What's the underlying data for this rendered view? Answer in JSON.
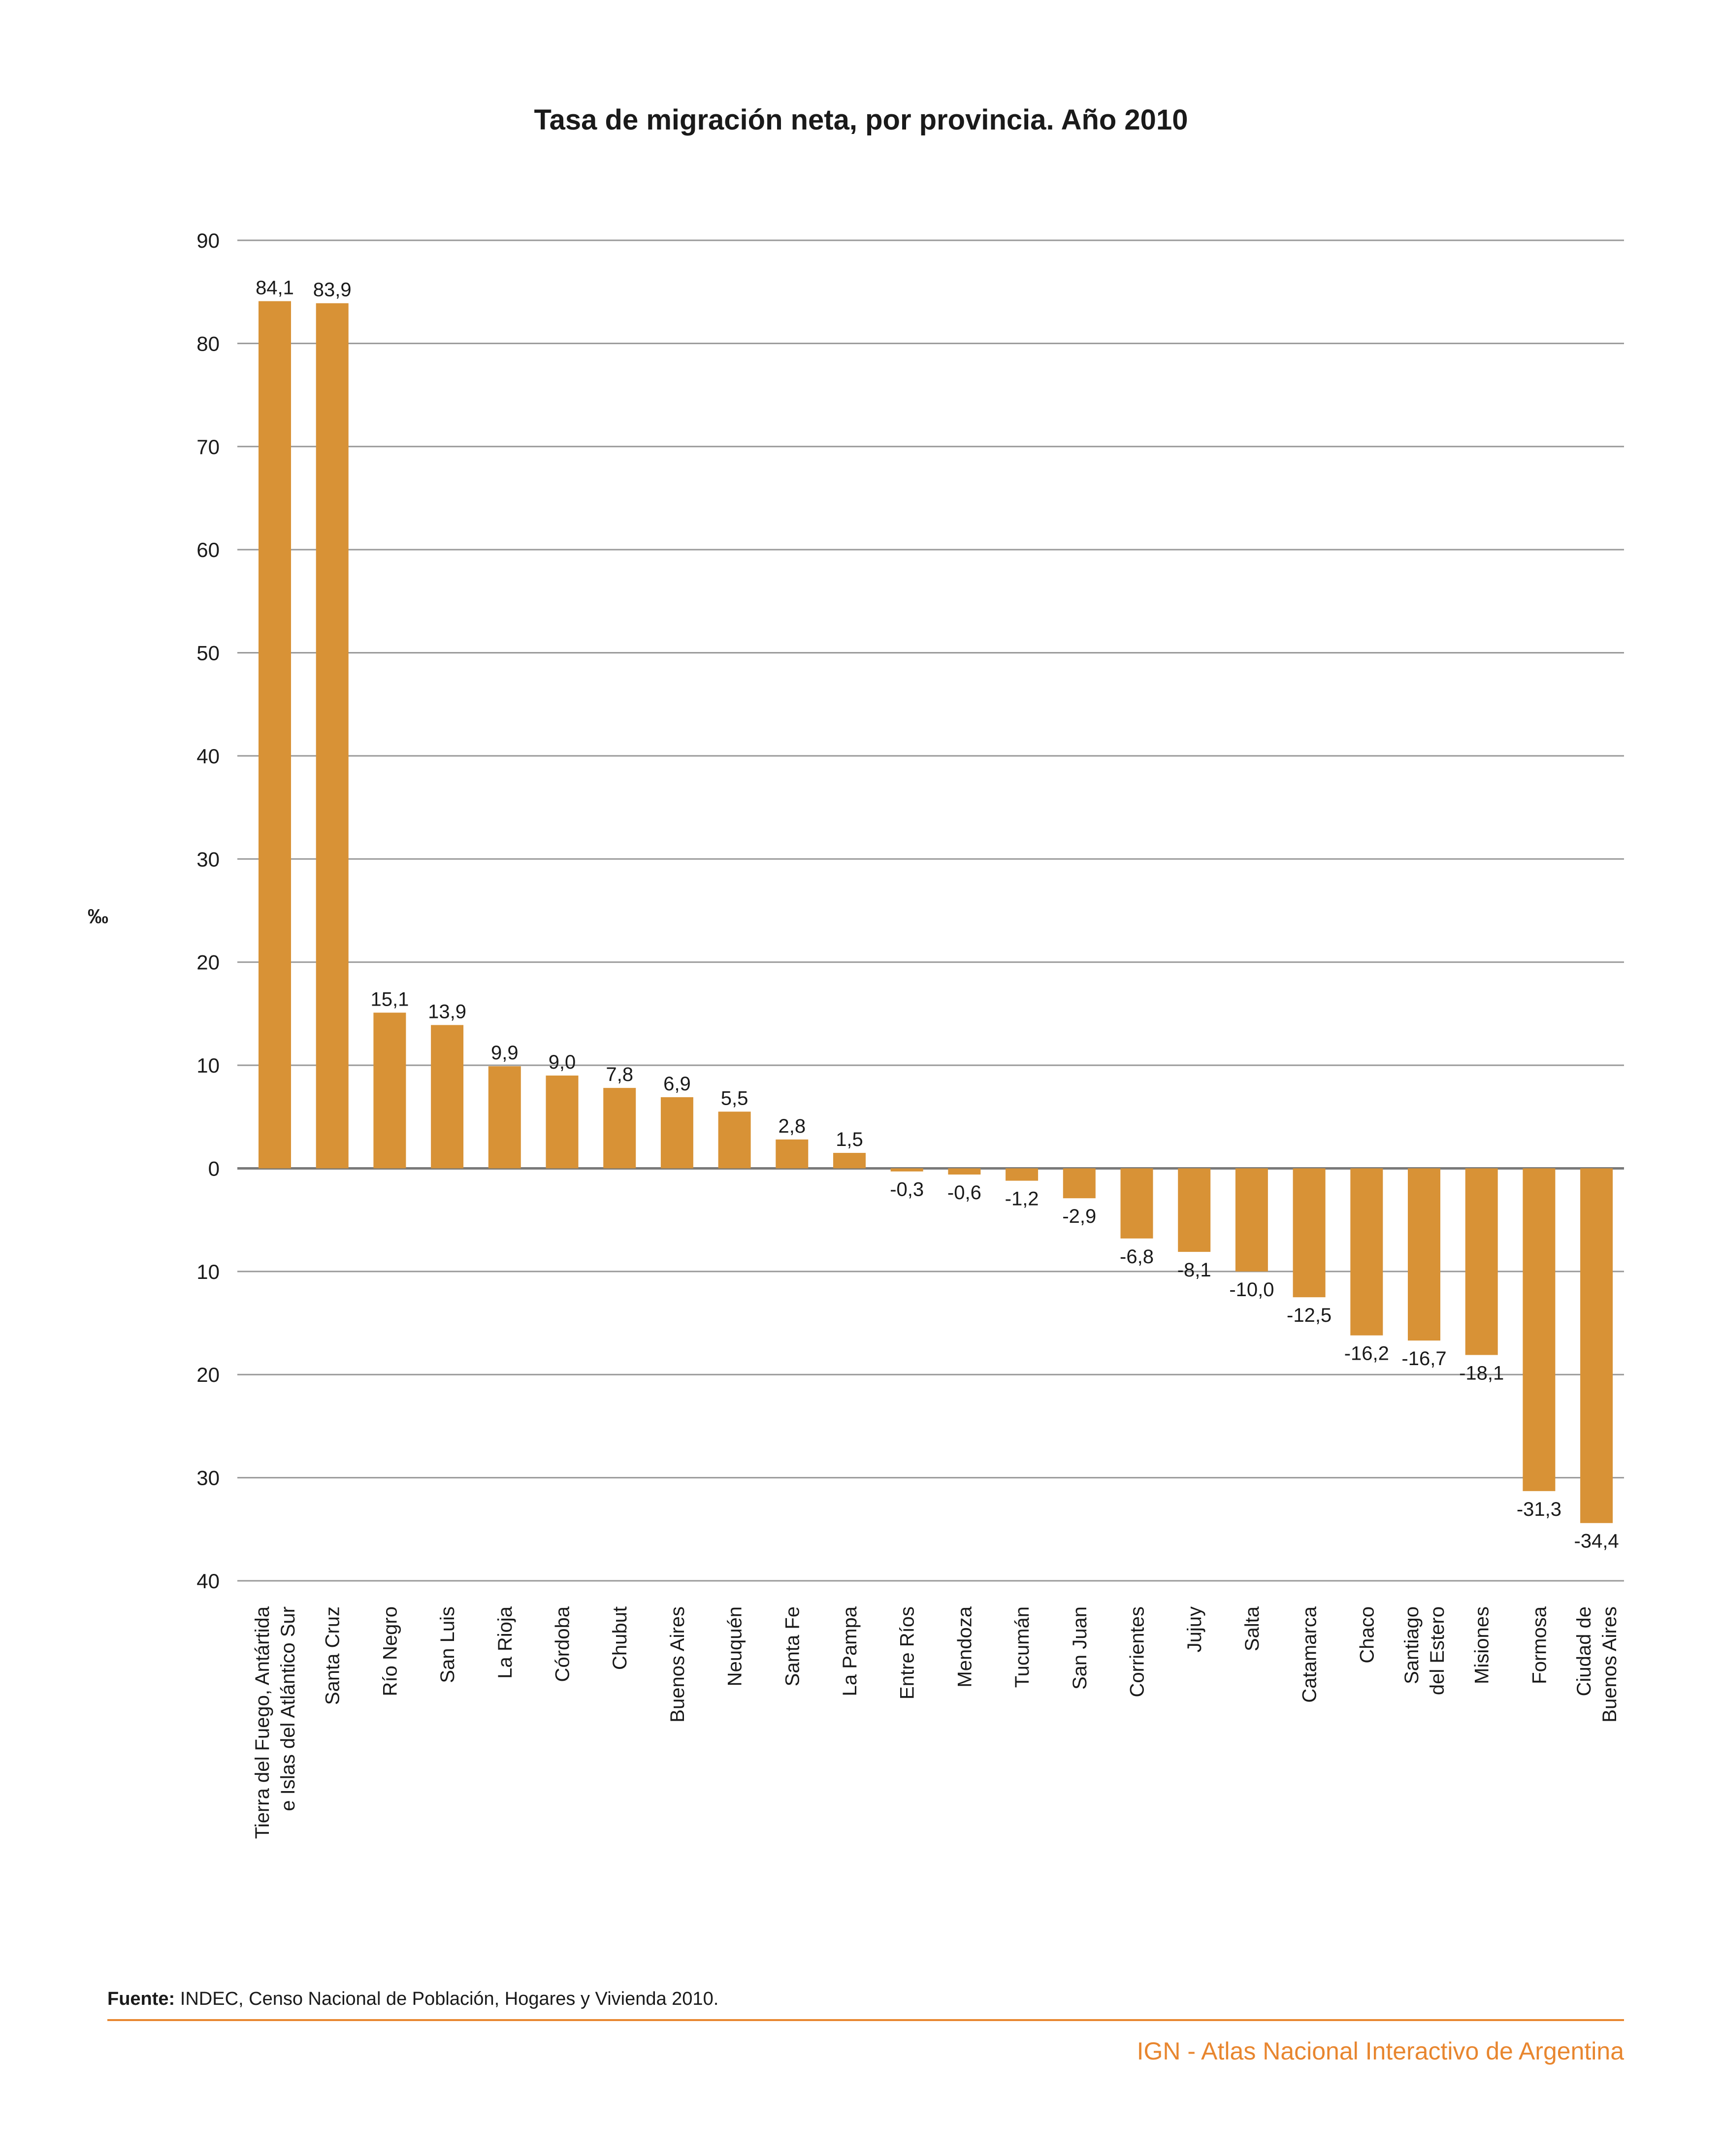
{
  "colors": {
    "bar": "#D89236",
    "grid": "#9a9a9a",
    "text": "#1a1a1a",
    "accent": "#E8862F"
  },
  "footer": {
    "source_label": "Fuente:",
    "source_text": " INDEC, Censo Nacional de Población, Hogares y Vivienda 2010.",
    "brand": "IGN - Atlas Nacional Interactivo de Argentina"
  },
  "chart_data": {
    "type": "bar",
    "title": "Tasa de migración neta, por provincia. Año 2010",
    "ylabel": "‰",
    "xlabel": "",
    "ylim": [
      -40,
      90
    ],
    "y_ticks": [
      90,
      80,
      70,
      60,
      50,
      40,
      30,
      20,
      10,
      0,
      -10,
      -20,
      -30,
      -40
    ],
    "y_tick_labels": [
      "90",
      "80",
      "70",
      "60",
      "50",
      "40",
      "30",
      "20",
      "10",
      "0",
      "10",
      "20",
      "30",
      "40"
    ],
    "grid": true,
    "categories": [
      [
        "Tierra del Fuego, Antártida",
        "e Islas del Atlántico Sur"
      ],
      [
        "Santa Cruz"
      ],
      [
        "Río Negro"
      ],
      [
        "San Luis"
      ],
      [
        "La Rioja"
      ],
      [
        "Córdoba"
      ],
      [
        "Chubut"
      ],
      [
        "Buenos Aires"
      ],
      [
        "Neuquén"
      ],
      [
        "Santa Fe"
      ],
      [
        "La Pampa"
      ],
      [
        "Entre Ríos"
      ],
      [
        "Mendoza"
      ],
      [
        "Tucumán"
      ],
      [
        "San Juan"
      ],
      [
        "Corrientes"
      ],
      [
        "Jujuy"
      ],
      [
        "Salta"
      ],
      [
        "Catamarca"
      ],
      [
        "Chaco"
      ],
      [
        "Santiago",
        "del Estero"
      ],
      [
        "Misiones"
      ],
      [
        "Formosa"
      ],
      [
        "Ciudad de",
        "Buenos Aires"
      ]
    ],
    "values": [
      84.1,
      83.9,
      15.1,
      13.9,
      9.9,
      9.0,
      7.8,
      6.9,
      5.5,
      2.8,
      1.5,
      -0.3,
      -0.6,
      -1.2,
      -2.9,
      -6.8,
      -8.1,
      -10.0,
      -12.5,
      -16.2,
      -16.7,
      -18.1,
      -31.3,
      -34.4
    ],
    "value_labels": [
      "84,1",
      "83,9",
      "15,1",
      "13,9",
      "9,9",
      "9,0",
      "7,8",
      "6,9",
      "5,5",
      "2,8",
      "1,5",
      "-0,3",
      "-0,6",
      "-1,2",
      "-2,9",
      "-6,8",
      "-8,1",
      "-10,0",
      "-12,5",
      "-16,2",
      "-16,7",
      "-18,1",
      "-31,3",
      "-34,4"
    ]
  }
}
